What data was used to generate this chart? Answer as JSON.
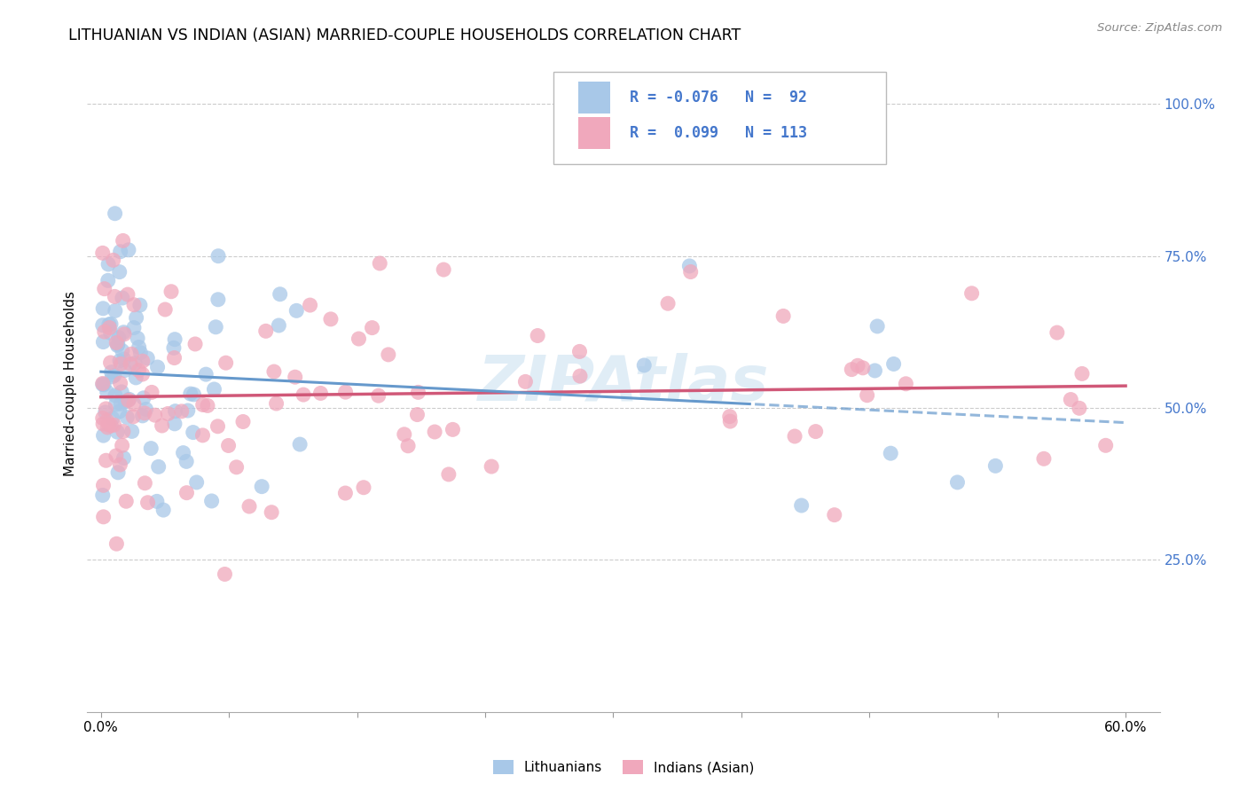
{
  "title": "LITHUANIAN VS INDIAN (ASIAN) MARRIED-COUPLE HOUSEHOLDS CORRELATION CHART",
  "source": "Source: ZipAtlas.com",
  "ylabel": "Married-couple Households",
  "R_lith": -0.076,
  "N_lith": 92,
  "R_indian": 0.099,
  "N_indian": 113,
  "color_lith": "#a8c8e8",
  "color_indian": "#f0a8bc",
  "color_lith_line": "#6699cc",
  "color_indian_line": "#d05878",
  "color_text_blue": "#4477cc",
  "watermark": "ZIPAtlas",
  "legend_label_lith": "Lithuanians",
  "legend_label_indian": "Indians (Asian)",
  "background_color": "#ffffff",
  "grid_color": "#cccccc",
  "xlim": [
    0.0,
    0.6
  ],
  "ylim": [
    0.0,
    1.0
  ],
  "x_tick_positions": [
    0.0,
    0.075,
    0.15,
    0.225,
    0.3,
    0.375,
    0.45,
    0.525,
    0.6
  ],
  "y_tick_positions": [
    0.0,
    0.25,
    0.5,
    0.75,
    1.0
  ],
  "y_tick_labels": [
    "",
    "25.0%",
    "50.0%",
    "75.0%",
    "100.0%"
  ],
  "lith_intercept": 0.555,
  "lith_slope": -0.076,
  "indian_intercept": 0.52,
  "indian_slope": 0.099
}
